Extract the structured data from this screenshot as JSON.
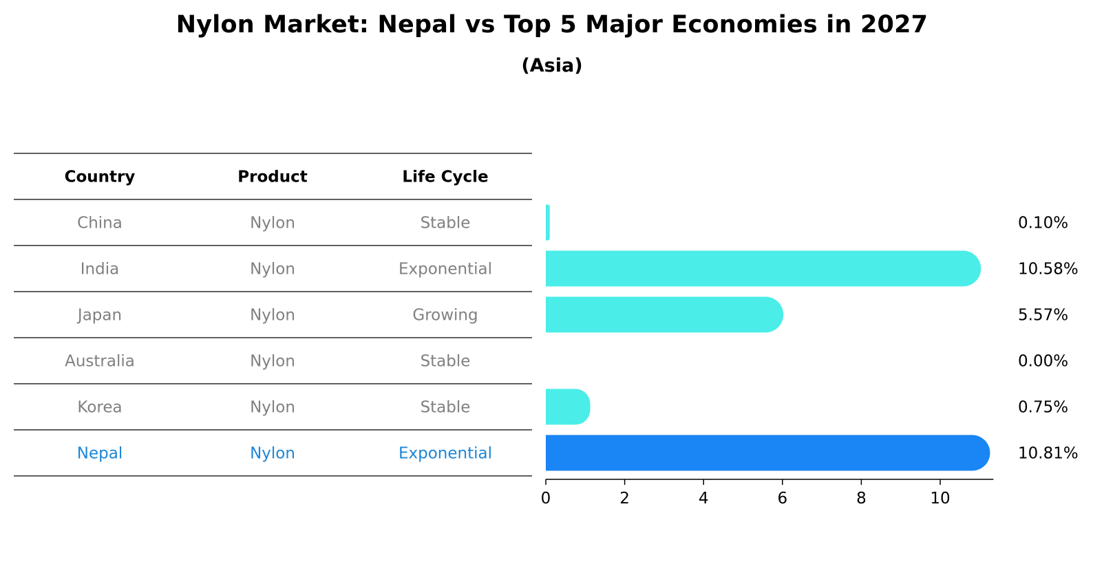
{
  "title": "Nylon Market: Nepal vs Top 5 Major Economies in 2027",
  "subtitle": "(Asia)",
  "colors": {
    "bar": "#4AEDE8",
    "highlight_bar": "#1A85F4",
    "muted_text": "#808080",
    "highlight_text": "#1C86D6",
    "rule": "#000000"
  },
  "chart_data": {
    "type": "bar",
    "orientation": "horizontal",
    "categories": [
      "China",
      "India",
      "Japan",
      "Australia",
      "Korea",
      "Nepal"
    ],
    "values": [
      0.1,
      10.58,
      5.57,
      0.0,
      0.75,
      10.81
    ],
    "value_labels": [
      "0.10%",
      "10.58%",
      "5.57%",
      "0.00%",
      "0.75%",
      "10.81%"
    ],
    "highlight": "Nepal",
    "xlim": [
      0,
      11.35
    ],
    "xticks": [
      0,
      2,
      4,
      6,
      8,
      10
    ],
    "xlabel": "",
    "ylabel": "",
    "grid": false,
    "table": {
      "columns": [
        "Country",
        "Product",
        "Life Cycle"
      ],
      "rows": [
        [
          "China",
          "Nylon",
          "Stable"
        ],
        [
          "India",
          "Nylon",
          "Exponential"
        ],
        [
          "Japan",
          "Nylon",
          "Growing"
        ],
        [
          "Australia",
          "Nylon",
          "Stable"
        ],
        [
          "Korea",
          "Nylon",
          "Stable"
        ],
        [
          "Nepal",
          "Nylon",
          "Exponential"
        ]
      ]
    }
  }
}
